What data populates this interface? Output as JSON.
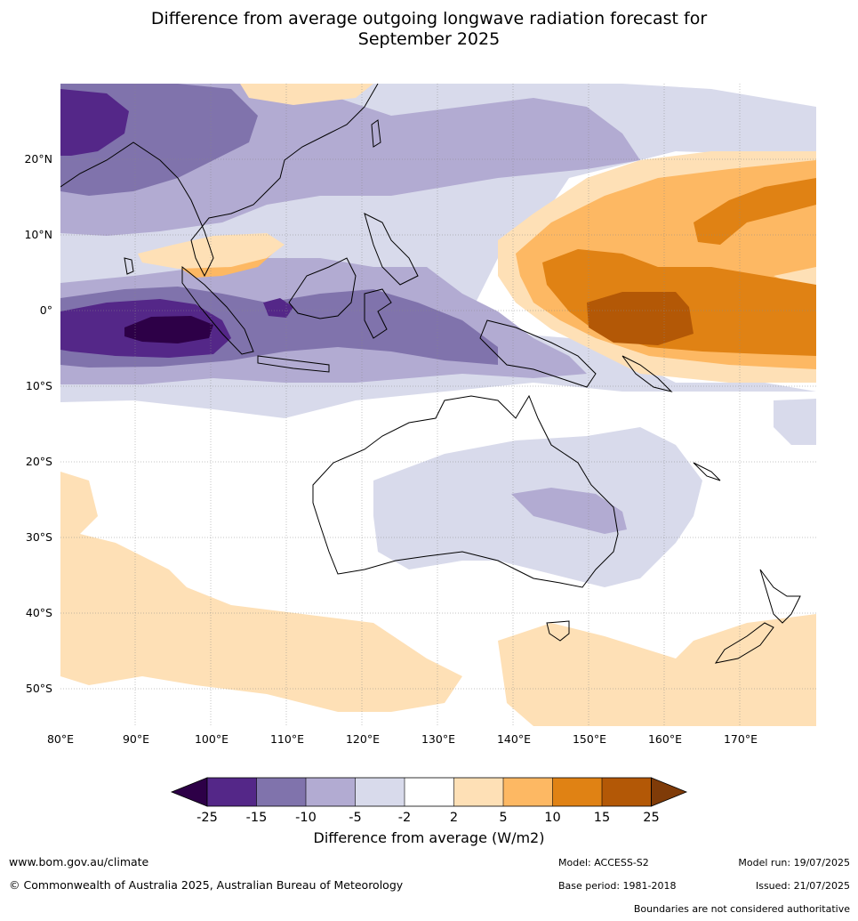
{
  "title": {
    "line1": "Difference from average outgoing longwave radiation forecast for",
    "line2": "September 2025"
  },
  "map": {
    "lat_labels": [
      "20°N",
      "10°N",
      "0°",
      "10°S",
      "20°S",
      "30°S",
      "40°S",
      "50°S"
    ],
    "lon_labels": [
      "80°E",
      "90°E",
      "100°E",
      "110°E",
      "120°E",
      "130°E",
      "140°E",
      "150°E",
      "160°E",
      "170°E"
    ],
    "extent": {
      "lon_min": 80,
      "lon_max": 180,
      "lat_min": -55,
      "lat_max": 30
    }
  },
  "colorbar": {
    "ticks": [
      "-25",
      "-15",
      "-10",
      "-5",
      "-2",
      "2",
      "5",
      "10",
      "15",
      "25"
    ],
    "colors": [
      "#2d0047",
      "#542788",
      "#8073ac",
      "#b2abd2",
      "#d8daeb",
      "#ffffff",
      "#fee0b6",
      "#fdb863",
      "#e08214",
      "#b35806",
      "#7f3b08"
    ],
    "label": "Difference from average (W/m2)"
  },
  "footer": {
    "website": "www.bom.gov.au/climate",
    "copyright": "© Commonwealth of Australia 2025, Australian Bureau of Meteorology",
    "model": "Model: ACCESS-S2",
    "base_period": "Base period: 1981-2018",
    "model_run": "Model run: 19/07/2025",
    "issued": "Issued: 21/07/2025",
    "disclaimer": "Boundaries are not considered authoritative"
  }
}
